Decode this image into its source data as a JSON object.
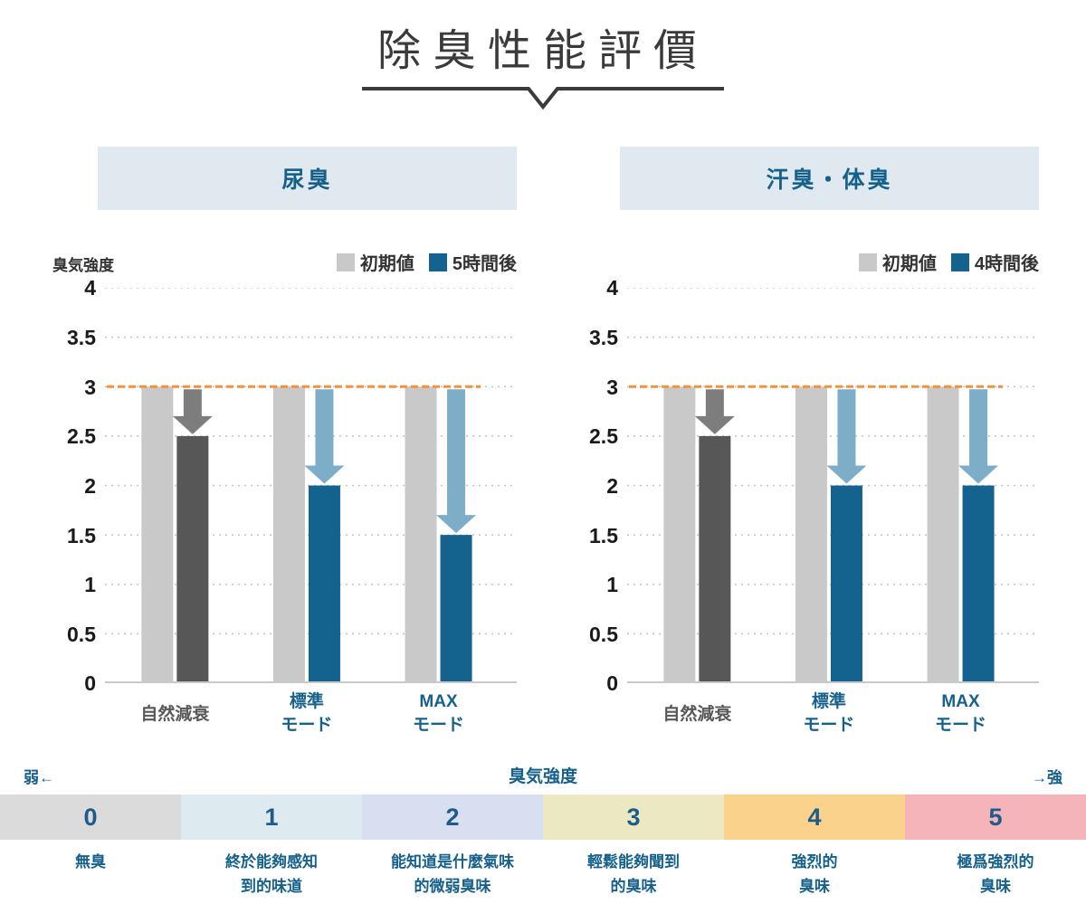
{
  "title": "除臭性能評價",
  "chart_data": [
    {
      "type": "bar",
      "title": "尿臭",
      "ylabel": "臭気強度",
      "ylim": [
        0,
        4
      ],
      "yticks": [
        0,
        0.5,
        1,
        1.5,
        2,
        2.5,
        3,
        3.5,
        4
      ],
      "categories": [
        "自然減衰",
        "標準モード",
        "MAXモード"
      ],
      "category_display": [
        [
          "自然減衰"
        ],
        [
          "標準",
          "モード"
        ],
        [
          "MAX",
          "モード"
        ]
      ],
      "category_colors": [
        "#595757",
        "#16618c",
        "#16618c"
      ],
      "series": [
        {
          "name": "初期値",
          "color": "#c9c9ca",
          "values": [
            3,
            3,
            3
          ]
        },
        {
          "name": "5時間後",
          "color": "#14638e",
          "values": [
            2.5,
            2,
            1.5
          ]
        }
      ],
      "after_bar_colors": [
        "#575757",
        "#14638e",
        "#14638e"
      ],
      "arrow_colors": [
        "#7d7d7d",
        "#7eadc9",
        "#7eadc9"
      ],
      "reference_line": {
        "value": 3,
        "color": "#f0923e"
      },
      "legend_position": "top-right",
      "grid": true
    },
    {
      "type": "bar",
      "title": "汗臭・体臭",
      "ylabel": "",
      "ylim": [
        0,
        4
      ],
      "yticks": [
        0,
        0.5,
        1,
        1.5,
        2,
        2.5,
        3,
        3.5,
        4
      ],
      "categories": [
        "自然減衰",
        "標準モード",
        "MAXモード"
      ],
      "category_display": [
        [
          "自然減衰"
        ],
        [
          "標準",
          "モード"
        ],
        [
          "MAX",
          "モード"
        ]
      ],
      "category_colors": [
        "#595757",
        "#16618c",
        "#16618c"
      ],
      "series": [
        {
          "name": "初期値",
          "color": "#c9c9ca",
          "values": [
            3,
            3,
            3
          ]
        },
        {
          "name": "4時間後",
          "color": "#14638e",
          "values": [
            2.5,
            2,
            2
          ]
        }
      ],
      "after_bar_colors": [
        "#575757",
        "#14638e",
        "#14638e"
      ],
      "arrow_colors": [
        "#7d7d7d",
        "#7eadc9",
        "#7eadc9"
      ],
      "reference_line": {
        "value": 3,
        "color": "#f0923e"
      },
      "legend_position": "top-right",
      "grid": true
    }
  ],
  "scale": {
    "left_label": "弱←",
    "center_label": "臭気強度",
    "right_label": "→強",
    "cells": [
      {
        "value": "0",
        "bg": "#dbdbdc",
        "desc": [
          "無臭"
        ]
      },
      {
        "value": "1",
        "bg": "#ddebf1",
        "desc": [
          "終於能夠感知",
          "到的味道"
        ]
      },
      {
        "value": "2",
        "bg": "#d8dff0",
        "desc": [
          "能知道是什麼氣味",
          "的微弱臭味"
        ]
      },
      {
        "value": "3",
        "bg": "#ece9c2",
        "desc": [
          "輕鬆能夠聞到",
          "的臭味"
        ]
      },
      {
        "value": "4",
        "bg": "#fbd28c",
        "desc": [
          "強烈的",
          "臭味"
        ]
      },
      {
        "value": "5",
        "bg": "#f4b4b9",
        "desc": [
          "極爲強烈的",
          "臭味"
        ]
      }
    ]
  }
}
